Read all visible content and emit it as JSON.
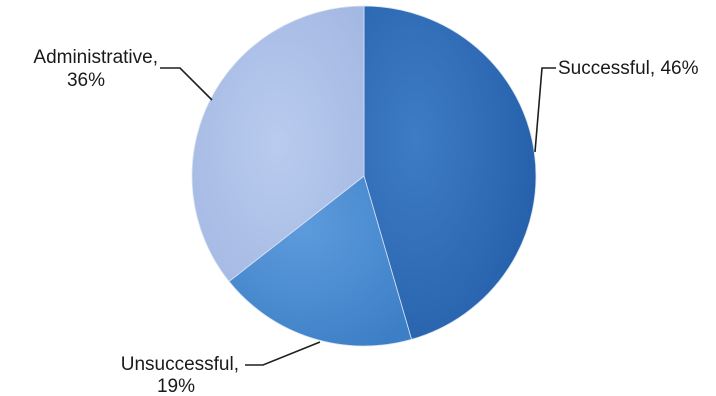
{
  "chart_data": {
    "type": "pie",
    "title": "",
    "slices": [
      {
        "label": "Successful",
        "value": 46,
        "display_name": "Successful,",
        "display_value": "46%",
        "color": "#2f6bb8"
      },
      {
        "label": "Unsuccessful",
        "value": 19,
        "display_name": "Unsuccessful,",
        "display_value": "19%",
        "color": "#4f8fd2"
      },
      {
        "label": "Administrative",
        "value": 36,
        "display_name": "Administrative,",
        "display_value": "36%",
        "color": "#aabde6"
      }
    ],
    "legend": "none",
    "labels": "outside with leader lines",
    "start_angle": "12 o'clock, clockwise"
  }
}
